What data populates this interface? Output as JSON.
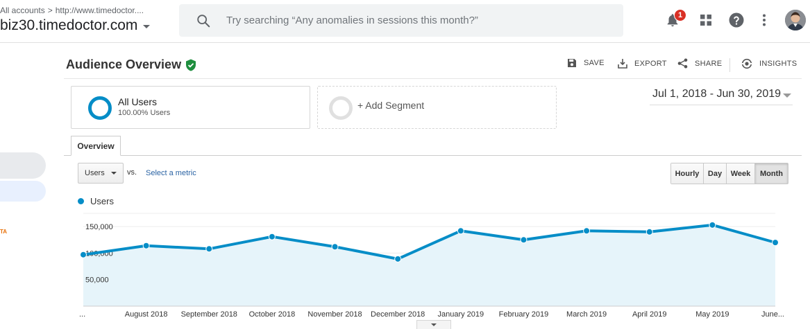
{
  "header": {
    "breadcrumb_root": "All accounts",
    "breadcrumb_sep": ">",
    "breadcrumb_account": "http://www.timedoctor....",
    "property_name": "biz30.timedoctor.com",
    "search_placeholder": "Try searching “Any anomalies in sessions this month?”",
    "notification_count": "1"
  },
  "sidebar": {
    "badge_text": "TA"
  },
  "report": {
    "title": "Audience Overview",
    "actions": {
      "save": "SAVE",
      "export": "EXPORT",
      "share": "SHARE",
      "insights": "INSIGHTS"
    }
  },
  "segments": {
    "all_users_name": "All Users",
    "all_users_pct": "100.00% Users",
    "add_segment": "+ Add Segment"
  },
  "date_range": "Jul 1, 2018 - Jun 30, 2019",
  "tabs": {
    "overview": "Overview"
  },
  "controls": {
    "metric": "Users",
    "vs": "vs.",
    "select_metric": "Select a metric",
    "granularity": [
      "Hourly",
      "Day",
      "Week",
      "Month"
    ],
    "selected_granularity": "Month"
  },
  "colors": {
    "line": "#058dc7",
    "area": "#e6f4fa",
    "verified": "#1e8e3e"
  },
  "chart_data": {
    "type": "area",
    "series": [
      {
        "name": "Users",
        "values": [
          97000,
          114000,
          108000,
          131000,
          112000,
          89000,
          142000,
          125000,
          142000,
          140000,
          153000,
          120000
        ]
      }
    ],
    "x_labels": [
      "...",
      "August 2018",
      "September 2018",
      "October 2018",
      "November 2018",
      "December 2018",
      "January 2019",
      "February 2019",
      "March 2019",
      "April 2019",
      "May 2019",
      "June..."
    ],
    "y_ticks": [
      "150,000",
      "100,000",
      "50,000"
    ],
    "y_tick_values": [
      150000,
      100000,
      50000
    ],
    "ylim": [
      0,
      175000
    ],
    "legend": "top-left"
  }
}
